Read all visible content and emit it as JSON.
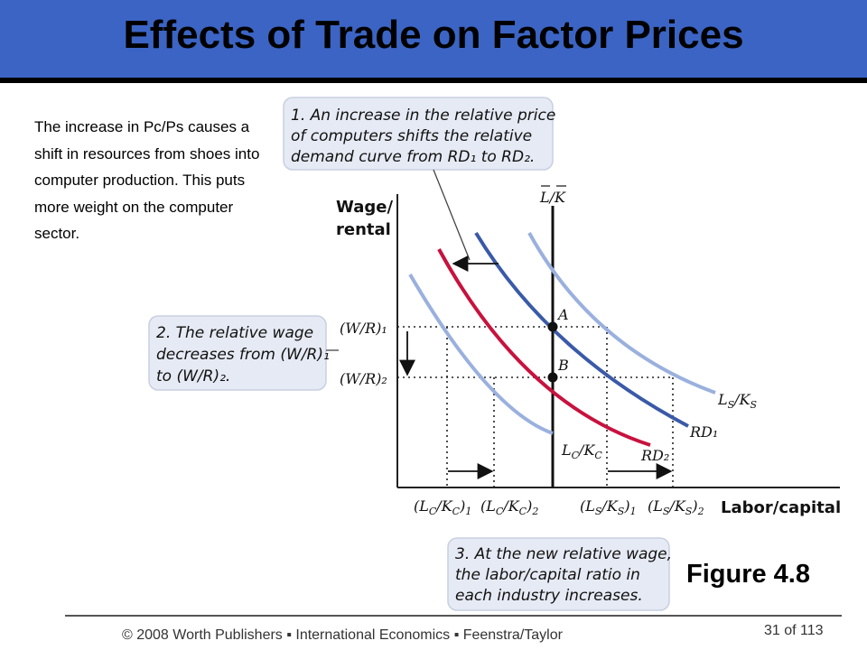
{
  "slide": {
    "title": "Effects of Trade on Factor Prices",
    "intro": "The increase in Pc/Ps causes a shift in resources from shoes into computer production. This puts more weight on the computer sector.",
    "figure_label": "Figure 4.8",
    "footer": "© 2008 Worth Publishers ▪ International Economics ▪ Feenstra/Taylor",
    "page": "31 of 113"
  },
  "colors": {
    "title_bar": "#3b64c4",
    "rd1": "#3a5aa8",
    "rd2": "#c8123e",
    "light_curves": "#9ab0de",
    "callout_bg": "#e6eaf4"
  },
  "diagram": {
    "callouts": [
      {
        "lines": [
          "1. An increase in the relative price",
          "of computers shifts the relative",
          "demand curve from RD₁ to RD₂."
        ]
      },
      {
        "lines": [
          "2. The relative wage",
          "decreases from (W/R)₁",
          "to (W/R)₂."
        ]
      },
      {
        "lines": [
          "3. At the new relative wage,",
          "the labor/capital ratio in",
          "each industry increases."
        ]
      }
    ],
    "y_axis_label": [
      "Wage/",
      "rental"
    ],
    "x_axis_label": "Labor/capital",
    "supply_label": "L/K",
    "y_ticks": [
      "(W/R)₁",
      "(W/R)₂"
    ],
    "x_ticks": [
      "(L_C/K_C)₁",
      "(L_C/K_C)₂",
      "(L_S/K_S)₁",
      "(L_S/K_S)₂"
    ],
    "curve_labels": {
      "ls": "L_S/K_S",
      "rd1": "RD₁",
      "rd2": "RD₂",
      "lc": "L_C/K_C"
    },
    "points": {
      "a": "A",
      "b": "B"
    }
  }
}
